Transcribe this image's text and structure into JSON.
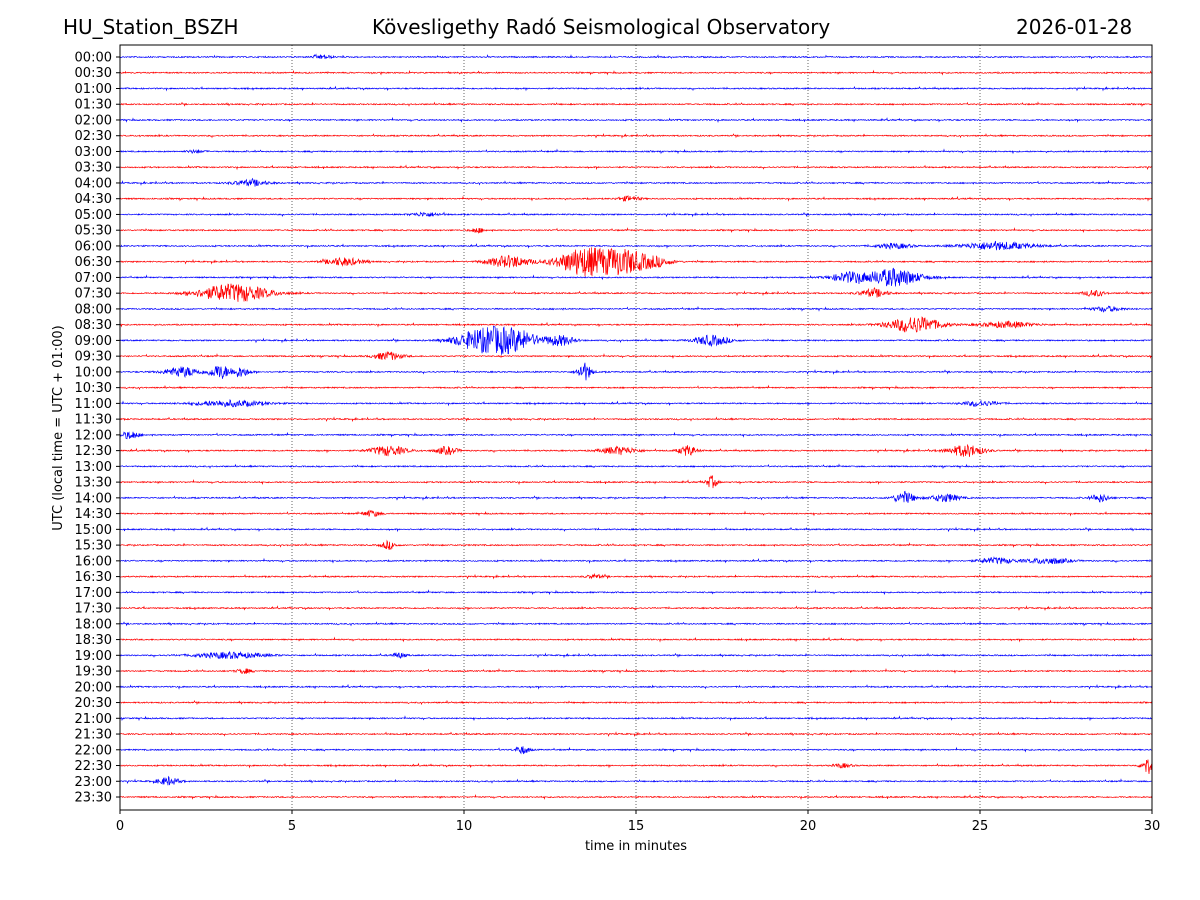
{
  "header": {
    "station": "HU_Station_BSZH",
    "title": "Kövesligethy Radó Seismological Observatory",
    "date": "2026-01-28"
  },
  "chart_data": {
    "type": "line",
    "subtype": "helicorder",
    "xlabel": "time in minutes",
    "ylabel": "UTC (local time = UTC + 01:00)",
    "xlim": [
      0,
      30
    ],
    "xticks": [
      "0",
      "5",
      "10",
      "15",
      "20",
      "25",
      "30"
    ],
    "grid": "vertical dotted at 5-minute intervals",
    "colors": [
      "#0000ff",
      "#ff0000"
    ],
    "rows": [
      "00:00",
      "00:30",
      "01:00",
      "01:30",
      "02:00",
      "02:30",
      "03:00",
      "03:30",
      "04:00",
      "04:30",
      "05:00",
      "05:30",
      "06:00",
      "06:30",
      "07:00",
      "07:30",
      "08:00",
      "08:30",
      "09:00",
      "09:30",
      "10:00",
      "10:30",
      "11:00",
      "11:30",
      "12:00",
      "12:30",
      "13:00",
      "13:30",
      "14:00",
      "14:30",
      "15:00",
      "15:30",
      "16:00",
      "16:30",
      "17:00",
      "17:30",
      "18:00",
      "18:30",
      "19:00",
      "19:30",
      "20:00",
      "20:30",
      "21:00",
      "21:30",
      "22:00",
      "22:30",
      "23:00",
      "23:30"
    ],
    "events": [
      {
        "row": "00:00",
        "minute": 5.9,
        "amplitude": 2,
        "duration": 0.5
      },
      {
        "row": "03:00",
        "minute": 2.2,
        "amplitude": 1.5,
        "duration": 0.5
      },
      {
        "row": "04:00",
        "minute": 3.8,
        "amplitude": 3,
        "duration": 1.0
      },
      {
        "row": "04:30",
        "minute": 14.8,
        "amplitude": 2.5,
        "duration": 0.6
      },
      {
        "row": "05:00",
        "minute": 8.9,
        "amplitude": 2,
        "duration": 0.8
      },
      {
        "row": "05:30",
        "minute": 10.4,
        "amplitude": 2.5,
        "duration": 0.4
      },
      {
        "row": "06:00",
        "minute": 22.5,
        "amplitude": 2.5,
        "duration": 1.0
      },
      {
        "row": "06:00",
        "minute": 25.5,
        "amplitude": 4,
        "duration": 2.0
      },
      {
        "row": "06:30",
        "minute": 6.5,
        "amplitude": 4,
        "duration": 1.0
      },
      {
        "row": "06:30",
        "minute": 11.3,
        "amplitude": 6,
        "duration": 1.2
      },
      {
        "row": "06:30",
        "minute": 13.5,
        "amplitude": 14,
        "duration": 1.5
      },
      {
        "row": "06:30",
        "minute": 14.6,
        "amplitude": 12,
        "duration": 1.2
      },
      {
        "row": "06:30",
        "minute": 15.5,
        "amplitude": 5,
        "duration": 1.0
      },
      {
        "row": "07:00",
        "minute": 21.2,
        "amplitude": 5,
        "duration": 1.0
      },
      {
        "row": "07:00",
        "minute": 22.5,
        "amplitude": 9,
        "duration": 1.5
      },
      {
        "row": "07:30",
        "minute": 3.3,
        "amplitude": 9,
        "duration": 2.0
      },
      {
        "row": "07:30",
        "minute": 21.9,
        "amplitude": 4,
        "duration": 0.8
      },
      {
        "row": "07:30",
        "minute": 28.3,
        "amplitude": 3,
        "duration": 0.6
      },
      {
        "row": "08:00",
        "minute": 28.7,
        "amplitude": 2.5,
        "duration": 0.8
      },
      {
        "row": "08:30",
        "minute": 23.1,
        "amplitude": 8,
        "duration": 1.5
      },
      {
        "row": "08:30",
        "minute": 25.8,
        "amplitude": 3,
        "duration": 1.5
      },
      {
        "row": "09:00",
        "minute": 10.5,
        "amplitude": 10,
        "duration": 1.5
      },
      {
        "row": "09:00",
        "minute": 11.4,
        "amplitude": 10,
        "duration": 1.5
      },
      {
        "row": "09:00",
        "minute": 12.8,
        "amplitude": 5,
        "duration": 0.8
      },
      {
        "row": "09:00",
        "minute": 17.2,
        "amplitude": 5,
        "duration": 1.0
      },
      {
        "row": "09:30",
        "minute": 7.8,
        "amplitude": 4,
        "duration": 0.8
      },
      {
        "row": "10:00",
        "minute": 1.8,
        "amplitude": 5,
        "duration": 1.0
      },
      {
        "row": "10:00",
        "minute": 2.9,
        "amplitude": 7,
        "duration": 0.6
      },
      {
        "row": "10:00",
        "minute": 3.5,
        "amplitude": 5,
        "duration": 0.5
      },
      {
        "row": "10:00",
        "minute": 13.5,
        "amplitude": 9,
        "duration": 0.4
      },
      {
        "row": "11:00",
        "minute": 3.2,
        "amplitude": 3,
        "duration": 2.0
      },
      {
        "row": "11:00",
        "minute": 25.0,
        "amplitude": 2.5,
        "duration": 1.0
      },
      {
        "row": "12:00",
        "minute": 0.3,
        "amplitude": 4,
        "duration": 0.5
      },
      {
        "row": "12:30",
        "minute": 7.8,
        "amplitude": 5,
        "duration": 1.0
      },
      {
        "row": "12:30",
        "minute": 9.5,
        "amplitude": 4,
        "duration": 0.6
      },
      {
        "row": "12:30",
        "minute": 14.5,
        "amplitude": 4,
        "duration": 1.0
      },
      {
        "row": "12:30",
        "minute": 16.5,
        "amplitude": 5,
        "duration": 0.5
      },
      {
        "row": "12:30",
        "minute": 24.6,
        "amplitude": 6,
        "duration": 1.0
      },
      {
        "row": "13:30",
        "minute": 17.2,
        "amplitude": 6,
        "duration": 0.3
      },
      {
        "row": "14:00",
        "minute": 22.8,
        "amplitude": 6,
        "duration": 0.6
      },
      {
        "row": "14:00",
        "minute": 24.0,
        "amplitude": 4,
        "duration": 0.8
      },
      {
        "row": "14:00",
        "minute": 28.5,
        "amplitude": 4,
        "duration": 0.5
      },
      {
        "row": "14:30",
        "minute": 7.3,
        "amplitude": 3,
        "duration": 0.5
      },
      {
        "row": "15:30",
        "minute": 7.8,
        "amplitude": 4,
        "duration": 0.4
      },
      {
        "row": "16:00",
        "minute": 25.5,
        "amplitude": 3,
        "duration": 1.0
      },
      {
        "row": "16:00",
        "minute": 27.0,
        "amplitude": 3,
        "duration": 1.2
      },
      {
        "row": "16:30",
        "minute": 13.8,
        "amplitude": 2,
        "duration": 0.5
      },
      {
        "row": "19:00",
        "minute": 3.2,
        "amplitude": 3,
        "duration": 2.0
      },
      {
        "row": "19:00",
        "minute": 8.1,
        "amplitude": 2.5,
        "duration": 0.4
      },
      {
        "row": "19:30",
        "minute": 3.6,
        "amplitude": 2.5,
        "duration": 0.4
      },
      {
        "row": "22:00",
        "minute": 11.7,
        "amplitude": 4,
        "duration": 0.4
      },
      {
        "row": "22:30",
        "minute": 21.0,
        "amplitude": 2,
        "duration": 0.5
      },
      {
        "row": "22:30",
        "minute": 29.9,
        "amplitude": 8,
        "duration": 0.4
      },
      {
        "row": "23:00",
        "minute": 1.4,
        "amplitude": 4,
        "duration": 0.6
      }
    ]
  }
}
